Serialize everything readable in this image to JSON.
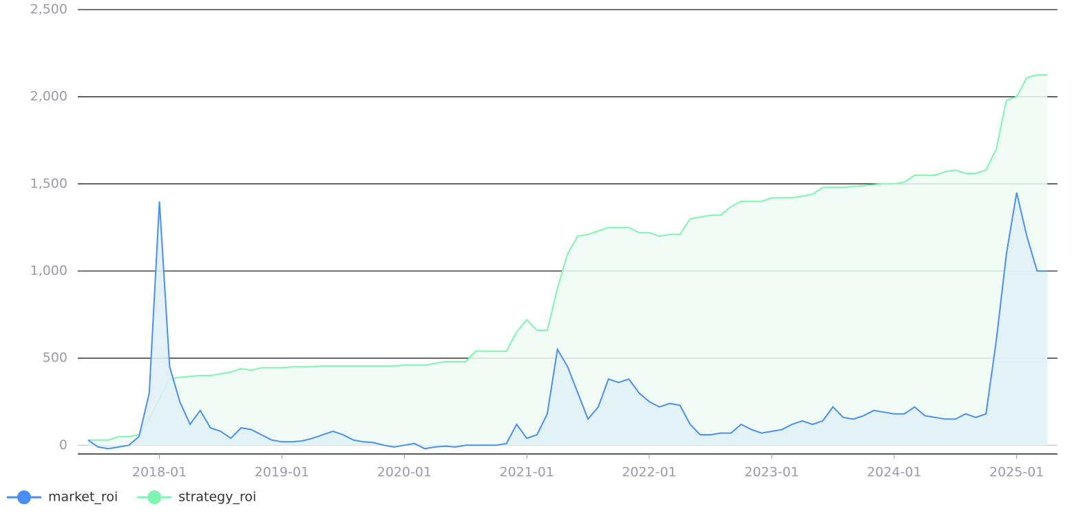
{
  "chart_data": {
    "type": "area",
    "x": [
      "2017-06",
      "2017-07",
      "2017-08",
      "2017-09",
      "2017-10",
      "2017-11",
      "2017-12",
      "2018-01",
      "2018-02",
      "2018-03",
      "2018-04",
      "2018-05",
      "2018-06",
      "2018-07",
      "2018-08",
      "2018-09",
      "2018-10",
      "2018-11",
      "2018-12",
      "2019-01",
      "2019-02",
      "2019-03",
      "2019-04",
      "2019-05",
      "2019-06",
      "2019-07",
      "2019-08",
      "2019-09",
      "2019-10",
      "2019-11",
      "2019-12",
      "2020-01",
      "2020-02",
      "2020-03",
      "2020-04",
      "2020-05",
      "2020-06",
      "2020-07",
      "2020-08",
      "2020-09",
      "2020-10",
      "2020-11",
      "2020-12",
      "2021-01",
      "2021-02",
      "2021-03",
      "2021-04",
      "2021-05",
      "2021-06",
      "2021-07",
      "2021-08",
      "2021-09",
      "2021-10",
      "2021-11",
      "2021-12",
      "2022-01",
      "2022-02",
      "2022-03",
      "2022-04",
      "2022-05",
      "2022-06",
      "2022-07",
      "2022-08",
      "2022-09",
      "2022-10",
      "2022-11",
      "2022-12",
      "2023-01",
      "2023-02",
      "2023-03",
      "2023-04",
      "2023-05",
      "2023-06",
      "2023-07",
      "2023-08",
      "2023-09",
      "2023-10",
      "2023-11",
      "2023-12",
      "2024-01",
      "2024-02",
      "2024-03",
      "2024-04",
      "2024-05",
      "2024-06",
      "2024-07",
      "2024-08",
      "2024-09",
      "2024-10",
      "2024-11",
      "2024-12",
      "2025-01",
      "2025-02",
      "2025-03",
      "2025-04"
    ],
    "series": [
      {
        "name": "market_roi",
        "color": "#4a8ef0",
        "fill": "#dff0f7",
        "values": [
          30,
          -10,
          -20,
          -10,
          0,
          50,
          300,
          1400,
          450,
          250,
          120,
          200,
          100,
          80,
          40,
          100,
          90,
          60,
          30,
          20,
          20,
          25,
          40,
          60,
          80,
          60,
          30,
          20,
          15,
          0,
          -10,
          0,
          10,
          -20,
          -10,
          -5,
          -10,
          0,
          0,
          0,
          0,
          10,
          120,
          40,
          60,
          180,
          550,
          450,
          300,
          150,
          220,
          380,
          360,
          380,
          300,
          250,
          220,
          240,
          230,
          120,
          60,
          60,
          70,
          70,
          120,
          90,
          70,
          80,
          90,
          120,
          140,
          120,
          140,
          220,
          160,
          150,
          170,
          200,
          190,
          180,
          180,
          220,
          170,
          160,
          150,
          150,
          180,
          160,
          180,
          600,
          1100,
          1450,
          1200,
          1000,
          1000
        ]
      },
      {
        "name": "strategy_roi",
        "color": "#7ef5b0",
        "fill": "#effcf4",
        "values": [
          30,
          30,
          30,
          50,
          50,
          60,
          150,
          270,
          380,
          390,
          395,
          400,
          400,
          410,
          420,
          440,
          430,
          445,
          445,
          445,
          450,
          450,
          450,
          455,
          455,
          455,
          455,
          455,
          455,
          455,
          455,
          460,
          460,
          460,
          470,
          480,
          480,
          480,
          540,
          540,
          540,
          540,
          650,
          720,
          660,
          660,
          900,
          1100,
          1200,
          1210,
          1230,
          1250,
          1250,
          1250,
          1220,
          1220,
          1200,
          1210,
          1210,
          1300,
          1310,
          1320,
          1320,
          1370,
          1400,
          1400,
          1400,
          1420,
          1420,
          1420,
          1430,
          1440,
          1480,
          1480,
          1480,
          1485,
          1490,
          1495,
          1500,
          1500,
          1510,
          1550,
          1550,
          1550,
          1570,
          1580,
          1560,
          1560,
          1580,
          1700,
          1980,
          2000,
          2110,
          2125,
          2125
        ]
      }
    ],
    "xlim": [
      "2017-05",
      "2025-05"
    ],
    "xticks": [
      "2018-01",
      "2019-01",
      "2020-01",
      "2021-01",
      "2022-01",
      "2023-01",
      "2024-01",
      "2025-01"
    ],
    "ylim": [
      -50,
      2500
    ],
    "yticks": [
      0,
      500,
      {
        "value": 1000,
        "label": "1,000"
      },
      {
        "value": 1500,
        "label": "1,500"
      },
      {
        "value": 2000,
        "label": "2,000"
      },
      {
        "value": 2500,
        "label": "2,500"
      }
    ],
    "grid": true,
    "legend": "bottom-left"
  }
}
